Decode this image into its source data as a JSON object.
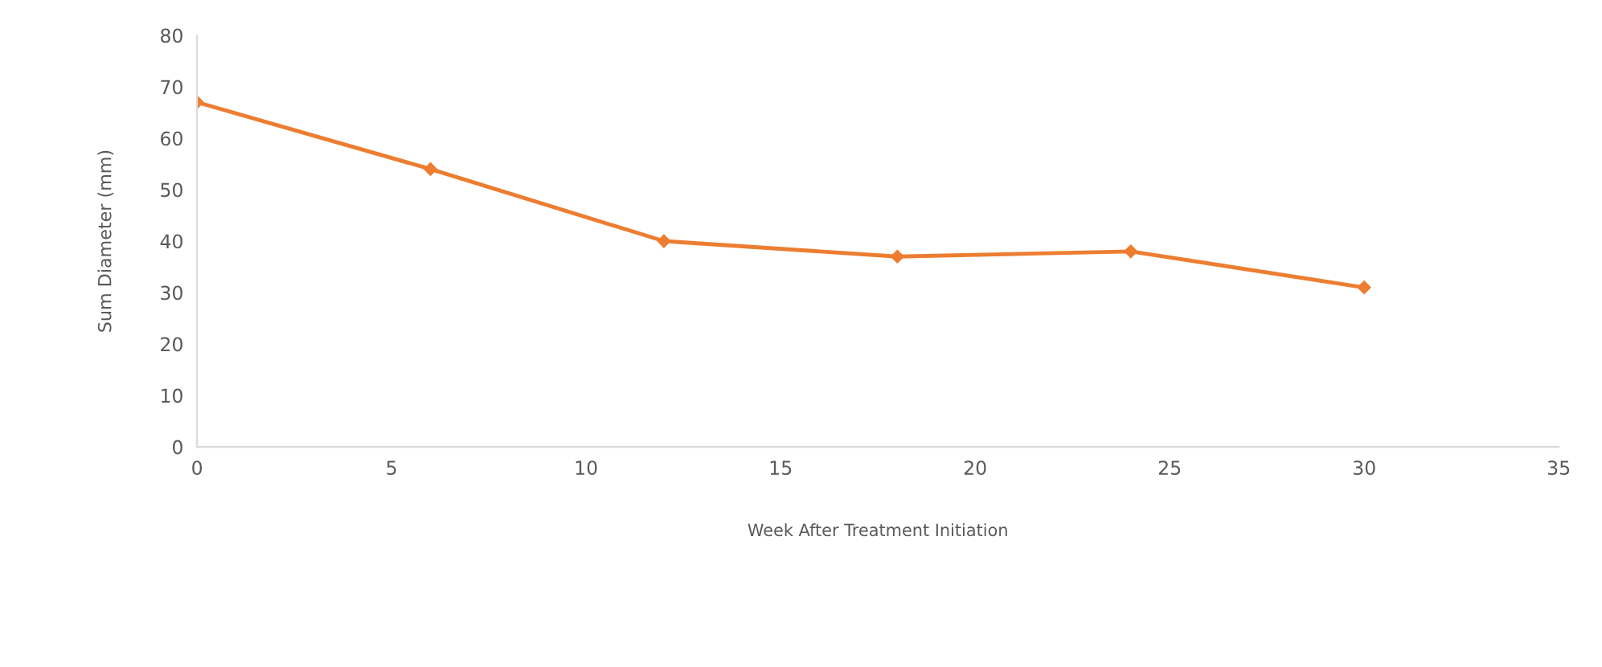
{
  "chart_data": {
    "type": "line",
    "xlabel": "Week After Treatment Initiation",
    "ylabel": "Sum Diameter (mm)",
    "x": [
      0,
      6,
      12,
      18,
      24,
      30
    ],
    "series": [
      {
        "color": "#ed7d31",
        "values": [
          67,
          54,
          40,
          37,
          38,
          31
        ]
      }
    ],
    "xlim": [
      0,
      35
    ],
    "xticks": [
      0,
      5,
      10,
      15,
      20,
      25,
      30,
      35
    ],
    "ylim": [
      0,
      80
    ],
    "yticks": [
      0,
      10,
      20,
      30,
      40,
      50,
      60,
      70,
      80
    ],
    "grid": false,
    "marker": "diamond",
    "line_style": "solid"
  }
}
